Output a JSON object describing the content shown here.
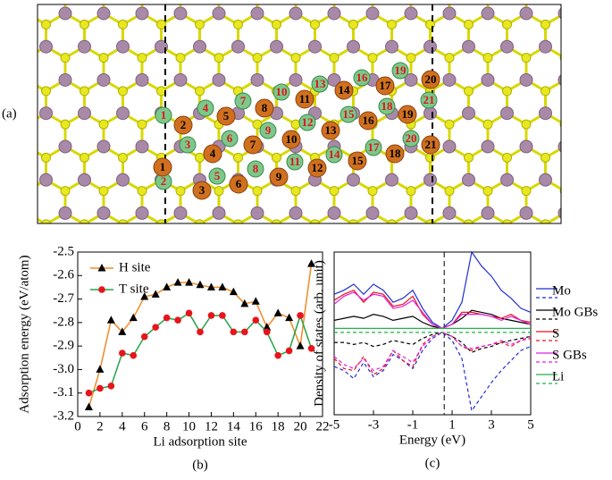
{
  "structure": {
    "label": "(a)",
    "h_sites": [
      "1",
      "2",
      "3",
      "4",
      "5",
      "6",
      "7",
      "8",
      "9",
      "10",
      "11",
      "12",
      "13",
      "14",
      "15",
      "16",
      "17",
      "18",
      "19",
      "20",
      "21"
    ],
    "t_sites": [
      "1",
      "2",
      "3",
      "4",
      "5",
      "6",
      "7",
      "8",
      "9",
      "10",
      "11",
      "12",
      "13",
      "14",
      "15",
      "16",
      "17",
      "18",
      "19",
      "20",
      "21"
    ]
  },
  "chart_data": [
    {
      "type": "line",
      "panel_label": "(b)",
      "x_label": "Li adsorption site",
      "y_label": "Adsorption energy (eV/atom)",
      "x": [
        1,
        2,
        3,
        4,
        5,
        6,
        7,
        8,
        9,
        10,
        11,
        12,
        13,
        14,
        15,
        16,
        17,
        18,
        19,
        20,
        21
      ],
      "series": [
        {
          "name": "H site",
          "color": "#f08a24",
          "marker": "triangle",
          "marker_color": "#000000",
          "values": [
            -3.16,
            -3.0,
            -2.79,
            -2.84,
            -2.78,
            -2.69,
            -2.68,
            -2.65,
            -2.63,
            -2.63,
            -2.64,
            -2.65,
            -2.65,
            -2.67,
            -2.72,
            -2.71,
            -2.82,
            -2.76,
            -2.78,
            -2.9,
            -2.55
          ]
        },
        {
          "name": "T site",
          "color": "#22a44a",
          "marker": "circle",
          "marker_color": "#e8141c",
          "values": [
            -3.1,
            -3.08,
            -3.07,
            -2.93,
            -2.94,
            -2.86,
            -2.82,
            -2.78,
            -2.79,
            -2.76,
            -2.84,
            -2.77,
            -2.77,
            -2.84,
            -2.84,
            -2.79,
            -2.84,
            -2.94,
            -2.92,
            -2.77,
            -2.91
          ]
        }
      ],
      "xlim": [
        0,
        22
      ],
      "ylim": [
        -3.2,
        -2.5
      ],
      "xticks": [
        0,
        2,
        4,
        6,
        8,
        10,
        12,
        14,
        16,
        18,
        20,
        22
      ],
      "yticks": [
        -3.2,
        -3.1,
        {
          "value": -3,
          "label": "-3.0"
        },
        -2.9,
        -2.8,
        -2.7,
        -2.6,
        -2.5
      ],
      "legend": "upper left"
    },
    {
      "type": "dos",
      "panel_label": "(c)",
      "x_label": "Energy (eV)",
      "y_label": "Density of states (arb. unit)",
      "x": [
        -5,
        -4.5,
        -4,
        -3.5,
        -3,
        -2.5,
        -2,
        -1.5,
        -1,
        -0.5,
        0,
        0.5,
        1,
        1.5,
        2,
        2.5,
        3,
        3.5,
        4,
        4.5,
        5
      ],
      "fermi_level": 0.6,
      "series": [
        {
          "name": "Mo",
          "color": "#1f2fd0",
          "values": [
            1.8,
            2,
            2.3,
            1.8,
            2.3,
            2,
            1.4,
            1.6,
            2,
            1.1,
            0.4,
            0.1,
            0.5,
            1.4,
            3.9,
            3.2,
            2.7,
            2,
            1.6,
            1.1,
            0.9
          ],
          "values_down": [
            -1.8,
            -2,
            -2.4,
            -1.6,
            -2.3,
            -2,
            -1.2,
            -1.5,
            -1.9,
            -1,
            -0.4,
            -0.1,
            -0.5,
            -1.4,
            -4,
            -3.3,
            -2.6,
            -2,
            -1.5,
            -1,
            -0.8
          ]
        },
        {
          "name": "Mo GBs",
          "color": "#000000",
          "values": [
            0.5,
            0.6,
            0.7,
            0.6,
            0.8,
            0.7,
            0.5,
            0.6,
            0.7,
            0.4,
            0.2,
            0.1,
            0.3,
            0.6,
            1,
            0.9,
            0.8,
            0.6,
            0.5,
            0.4,
            0.3
          ],
          "values_down": [
            -0.6,
            -0.6,
            -0.7,
            -0.6,
            -0.8,
            -0.7,
            -0.5,
            -0.6,
            -0.7,
            -0.4,
            -0.2,
            -0.1,
            -0.3,
            -0.6,
            -1.1,
            -0.9,
            -0.8,
            -0.6,
            -0.5,
            -0.4,
            -0.3
          ]
        },
        {
          "name": "S",
          "color": "#e8141c",
          "values": [
            1.5,
            1.8,
            2,
            1.4,
            1.9,
            1.8,
            1.2,
            1.3,
            1.7,
            0.8,
            0.3,
            0.1,
            0.3,
            0.9,
            0.9,
            0.8,
            0.7,
            0.6,
            0.8,
            0.5,
            0.4
          ],
          "values_down": [
            -1.4,
            -1.9,
            -2,
            -1.3,
            -2.2,
            -1.9,
            -1,
            -1.5,
            -1.8,
            -0.7,
            -0.3,
            -0.1,
            -0.3,
            -0.8,
            -1,
            -0.8,
            -0.7,
            -0.6,
            -0.8,
            -0.5,
            -0.4
          ]
        },
        {
          "name": "S GBs",
          "color": "#e020e0",
          "values": [
            1.3,
            1.7,
            1.9,
            1.5,
            1.8,
            1.7,
            1.1,
            1.2,
            1.5,
            0.9,
            0.3,
            0.1,
            0.3,
            0.8,
            0.8,
            0.8,
            0.7,
            0.5,
            0.7,
            0.5,
            0.3
          ],
          "values_down": [
            -1.3,
            -1.7,
            -1.9,
            -1.4,
            -2,
            -1.8,
            -1,
            -1.3,
            -1.6,
            -0.8,
            -0.3,
            -0.1,
            -0.3,
            -0.8,
            -0.9,
            -0.8,
            -0.7,
            -0.5,
            -0.7,
            -0.5,
            -0.3
          ]
        },
        {
          "name": "Li",
          "color": "#22b04a",
          "values": [
            0.1,
            0.1,
            0.1,
            0.1,
            0.1,
            0.1,
            0.1,
            0.1,
            0.1,
            0.1,
            0.1,
            0.1,
            0.1,
            0.1,
            0.1,
            0.1,
            0.1,
            0.1,
            0.1,
            0.1,
            0.1
          ],
          "values_down": [
            -0.1,
            -0.1,
            -0.1,
            -0.1,
            -0.1,
            -0.1,
            -0.1,
            -0.1,
            -0.1,
            -0.1,
            -0.1,
            -0.1,
            -0.1,
            -0.1,
            -0.1,
            -0.1,
            -0.1,
            -0.1,
            -0.1,
            -0.1,
            -0.1
          ]
        }
      ],
      "xlim": [
        -5,
        5
      ],
      "ylim": [
        -4.2,
        3.9
      ],
      "xticks": [
        -5,
        -3,
        -1,
        1,
        3,
        5
      ],
      "legend": "outside right"
    }
  ]
}
